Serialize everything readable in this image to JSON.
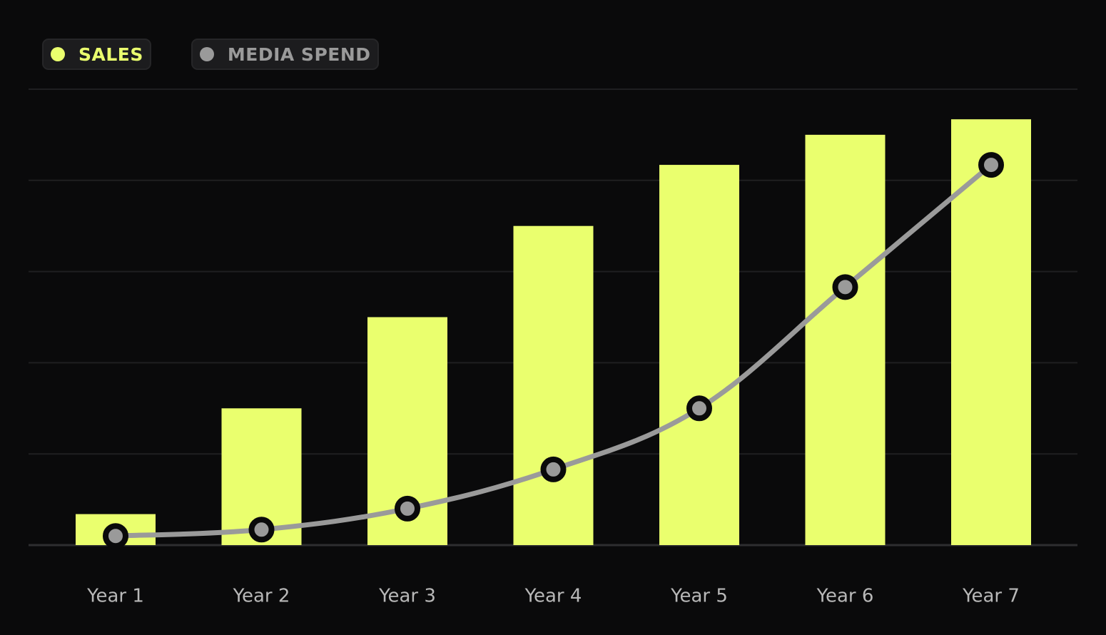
{
  "legend": {
    "items": [
      {
        "label": "SALES",
        "color": "#eaff6e"
      },
      {
        "label": "MEDIA SPEND",
        "color": "#9a9a9a"
      }
    ]
  },
  "colors": {
    "background": "#0a0a0b",
    "grid": "#1f1f21",
    "axis": "#2e2e30",
    "tick_label": "#b8b8b8"
  },
  "chart_data": {
    "type": "bar",
    "categories": [
      "Year 1",
      "Year 2",
      "Year 3",
      "Year 4",
      "Year 5",
      "Year 6",
      "Year 7"
    ],
    "ylim": [
      0,
      5
    ],
    "grid": true,
    "legend_position": "top-left",
    "series": [
      {
        "name": "SALES",
        "type": "bar",
        "color": "#eaff6e",
        "values": [
          0.34,
          1.5,
          2.5,
          3.5,
          4.17,
          4.5,
          4.67
        ]
      },
      {
        "name": "MEDIA SPEND",
        "type": "line",
        "color": "#9a9a9a",
        "values": [
          0.1,
          0.17,
          0.4,
          0.83,
          1.5,
          2.83,
          4.17
        ]
      }
    ]
  }
}
